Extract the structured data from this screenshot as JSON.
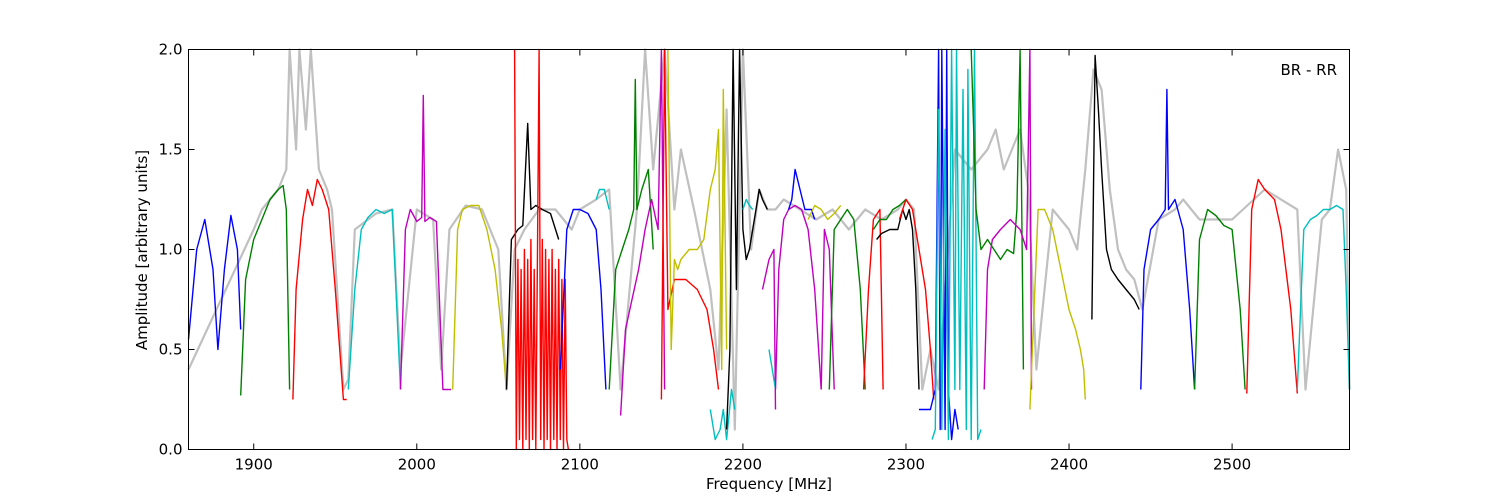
{
  "chart_data": {
    "type": "line",
    "title": "",
    "xlabel": "Frequency [MHz]",
    "ylabel": "Amplitude [arbitrary units]",
    "annotation": "BR - RR",
    "xlim": [
      1860,
      2572
    ],
    "ylim": [
      0.0,
      2.0
    ],
    "xticks": [
      1900,
      2000,
      2100,
      2200,
      2300,
      2400,
      2500
    ],
    "xtick_labels": [
      "1900",
      "2000",
      "2100",
      "2200",
      "2300",
      "2400",
      "2500"
    ],
    "yticks": [
      0.0,
      0.5,
      1.0,
      1.5,
      2.0
    ],
    "ytick_labels": [
      "0.0",
      "0.5",
      "1.0",
      "1.5",
      "2.0"
    ],
    "grid": false,
    "series": [
      {
        "color": "#c0c0c0",
        "kind": "reference",
        "x": [
          1860,
          1900,
          1905,
          1915,
          1920,
          1922,
          1926,
          1928,
          1932,
          1935,
          1940,
          1945,
          1948,
          1955,
          1958,
          1962,
          1975,
          1985,
          1990,
          2000,
          2010,
          2015,
          2020,
          2030,
          2040,
          2050,
          2055,
          2060,
          2066,
          2075,
          2085,
          2095,
          2100,
          2110,
          2118,
          2125,
          2135,
          2140,
          2145,
          2152,
          2158,
          2162,
          2170,
          2175,
          2180,
          2185,
          2190,
          2195,
          2200,
          2205,
          2210,
          2215,
          2220,
          2225,
          2235,
          2245,
          2255,
          2265,
          2275,
          2285,
          2295,
          2300,
          2305,
          2310,
          2315,
          2320,
          2330,
          2340,
          2350,
          2355,
          2360,
          2370,
          2375,
          2380,
          2390,
          2400,
          2405,
          2410,
          2415,
          2420,
          2425,
          2430,
          2435,
          2440,
          2445,
          2455,
          2465,
          2470,
          2480,
          2500,
          2520,
          2540,
          2545,
          2555,
          2560,
          2565,
          2570,
          2572
        ],
        "y": [
          0.4,
          1.1,
          1.2,
          1.3,
          1.4,
          2.0,
          1.5,
          2.0,
          1.6,
          2.0,
          1.4,
          1.3,
          1.2,
          0.3,
          0.35,
          1.1,
          1.18,
          1.2,
          0.4,
          1.2,
          1.15,
          0.4,
          1.1,
          1.22,
          1.2,
          1.0,
          0.3,
          1.0,
          1.1,
          1.2,
          1.2,
          1.1,
          1.2,
          1.25,
          1.3,
          0.3,
          1.2,
          2.0,
          1.4,
          2.0,
          1.2,
          1.5,
          1.2,
          1.0,
          0.8,
          0.4,
          1.7,
          0.1,
          2.0,
          1.0,
          1.3,
          1.2,
          1.2,
          1.25,
          1.2,
          1.15,
          1.2,
          1.1,
          1.2,
          1.15,
          1.2,
          1.25,
          1.2,
          0.3,
          0.5,
          0.3,
          1.5,
          1.4,
          1.5,
          1.6,
          1.4,
          1.6,
          1.3,
          0.4,
          1.2,
          1.1,
          1.0,
          1.4,
          1.9,
          1.8,
          1.3,
          1.0,
          0.9,
          0.85,
          0.7,
          1.15,
          1.2,
          1.25,
          1.15,
          1.15,
          1.3,
          1.2,
          0.3,
          1.15,
          1.2,
          1.5,
          1.3,
          0.3
        ]
      },
      {
        "color": "#0000ff",
        "x": [
          1860,
          1865,
          1870,
          1875,
          1878,
          1882,
          1886,
          1890,
          1892
        ],
        "y": [
          0.55,
          1.0,
          1.15,
          0.9,
          0.5,
          0.9,
          1.17,
          1.0,
          0.6
        ]
      },
      {
        "color": "#008000",
        "x": [
          1892,
          1895,
          1900,
          1905,
          1910,
          1915,
          1918,
          1920,
          1922
        ],
        "y": [
          0.27,
          0.85,
          1.05,
          1.15,
          1.25,
          1.3,
          1.32,
          1.2,
          0.3
        ]
      },
      {
        "color": "#ff0000",
        "x": [
          1924,
          1926,
          1930,
          1933,
          1936,
          1939,
          1942,
          1946,
          1950,
          1955,
          1957
        ],
        "y": [
          0.25,
          0.8,
          1.15,
          1.3,
          1.22,
          1.35,
          1.3,
          1.2,
          0.8,
          0.25,
          0.25
        ]
      },
      {
        "color": "#00bfbf",
        "x": [
          1958,
          1962,
          1966,
          1970,
          1975,
          1980,
          1985,
          1990
        ],
        "y": [
          0.3,
          0.8,
          1.1,
          1.16,
          1.2,
          1.18,
          1.2,
          0.3
        ]
      },
      {
        "color": "#bf00bf",
        "x": [
          1990,
          1993,
          1996,
          2000,
          2003,
          2004,
          2005,
          2008,
          2012,
          2016,
          2021
        ],
        "y": [
          0.3,
          1.1,
          1.2,
          1.14,
          1.16,
          1.77,
          1.14,
          1.16,
          1.14,
          0.3,
          0.3
        ]
      },
      {
        "color": "#bfbf00",
        "x": [
          2022,
          2025,
          2028,
          2033,
          2038,
          2043,
          2048,
          2052,
          2055
        ],
        "y": [
          0.3,
          1.1,
          1.2,
          1.22,
          1.22,
          1.1,
          0.9,
          0.6,
          0.3
        ]
      },
      {
        "color": "#000000",
        "x": [
          2055,
          2058,
          2062,
          2065,
          2068,
          2070,
          2073,
          2077,
          2082,
          2087
        ],
        "y": [
          0.3,
          1.05,
          1.1,
          1.12,
          1.63,
          1.2,
          1.22,
          1.2,
          1.18,
          1.05
        ]
      },
      {
        "color": "#ff0000",
        "x": [
          2060,
          2061,
          2062,
          2063,
          2064,
          2065,
          2066,
          2067,
          2068,
          2069,
          2070,
          2071,
          2072,
          2073,
          2074,
          2075,
          2076,
          2077,
          2078,
          2079,
          2080,
          2081,
          2082,
          2083,
          2084,
          2085,
          2086,
          2087,
          2088,
          2089,
          2090,
          2091,
          2092,
          2093
        ],
        "y": [
          2.0,
          0.0,
          0.95,
          0.05,
          0.9,
          0.0,
          1.0,
          0.05,
          0.95,
          0.0,
          1.05,
          0.05,
          0.9,
          0.0,
          1.0,
          2.0,
          0.05,
          1.05,
          0.0,
          1.0,
          0.05,
          0.95,
          0.0,
          1.0,
          0.05,
          0.9,
          0.0,
          0.95,
          0.05,
          0.85,
          0.0,
          0.85,
          0.05,
          0.0
        ]
      },
      {
        "color": "#0000ff",
        "x": [
          2088,
          2092,
          2096,
          2100,
          2105,
          2110,
          2113,
          2116
        ],
        "y": [
          0.4,
          1.1,
          1.2,
          1.2,
          1.18,
          1.1,
          0.8,
          0.3
        ]
      },
      {
        "color": "#00bfbf",
        "x": [
          2110,
          2112,
          2115,
          2118
        ],
        "y": [
          1.25,
          1.3,
          1.3,
          1.2
        ]
      },
      {
        "color": "#008000",
        "x": [
          2118,
          2122,
          2126,
          2130,
          2133,
          2134,
          2135,
          2138,
          2142,
          2145
        ],
        "y": [
          0.3,
          0.9,
          1.0,
          1.1,
          1.2,
          1.85,
          1.2,
          1.3,
          1.4,
          1.0
        ]
      },
      {
        "color": "#bf00bf",
        "x": [
          2125,
          2128,
          2132,
          2136,
          2140,
          2144,
          2148,
          2150,
          2152
        ],
        "y": [
          0.17,
          0.6,
          0.75,
          0.9,
          1.1,
          1.25,
          1.1,
          2.0,
          0.3
        ]
      },
      {
        "color": "#ff0000",
        "x": [
          2150,
          2152,
          2154,
          2158,
          2165,
          2172,
          2178,
          2182,
          2185
        ],
        "y": [
          0.25,
          2.0,
          0.7,
          0.85,
          0.85,
          0.8,
          0.7,
          0.5,
          0.3
        ]
      },
      {
        "color": "#bfbf00",
        "x": [
          2154,
          2156,
          2158,
          2160,
          2162,
          2167,
          2172,
          2176,
          2180,
          2183,
          2185,
          2187,
          2188,
          2190
        ],
        "y": [
          2.0,
          0.5,
          0.95,
          0.9,
          0.95,
          1.0,
          1.0,
          1.05,
          1.3,
          1.4,
          1.6,
          0.4,
          1.8,
          0.5
        ]
      },
      {
        "color": "#00bfbf",
        "x": [
          2180,
          2183,
          2186,
          2188,
          2190,
          2193,
          2195
        ],
        "y": [
          0.2,
          0.05,
          0.1,
          0.2,
          0.05,
          0.3,
          0.2
        ]
      },
      {
        "color": "#000000",
        "x": [
          2190,
          2192,
          2194,
          2196,
          2198,
          2200,
          2202,
          2204,
          2206,
          2208,
          2210,
          2212,
          2215
        ],
        "y": [
          0.1,
          0.5,
          2.0,
          0.8,
          2.0,
          1.1,
          0.95,
          1.0,
          1.1,
          1.2,
          1.3,
          1.25,
          1.2
        ]
      },
      {
        "color": "#00bfbf",
        "x": [
          2200,
          2202,
          2204,
          2206
        ],
        "y": [
          1.2,
          1.25,
          1.22,
          1.2
        ]
      },
      {
        "color": "#bf00bf",
        "x": [
          2212,
          2216,
          2219,
          2220
        ],
        "y": [
          0.8,
          0.95,
          1.0,
          0.2
        ]
      },
      {
        "color": "#00bfbf",
        "x": [
          2216,
          2218,
          2220
        ],
        "y": [
          0.5,
          0.4,
          0.3
        ]
      },
      {
        "color": "#bf00bf",
        "x": [
          2220,
          2222,
          2225,
          2228,
          2232,
          2236,
          2240,
          2244,
          2248
        ],
        "y": [
          0.3,
          0.9,
          1.15,
          1.2,
          1.22,
          1.2,
          1.1,
          0.8,
          0.3
        ]
      },
      {
        "color": "#0000ff",
        "x": [
          2228,
          2230,
          2232,
          2235,
          2238,
          2242,
          2244
        ],
        "y": [
          1.2,
          1.25,
          1.4,
          1.3,
          1.2,
          1.2,
          1.15
        ]
      },
      {
        "color": "#bfbf00",
        "x": [
          2240,
          2244,
          2248,
          2252,
          2256,
          2260
        ],
        "y": [
          1.15,
          1.22,
          1.2,
          1.15,
          1.18,
          1.22
        ]
      },
      {
        "color": "#bf00bf",
        "x": [
          2248,
          2250,
          2253,
          2256
        ],
        "y": [
          0.3,
          1.1,
          1.0,
          0.3
        ]
      },
      {
        "color": "#008000",
        "x": [
          2253,
          2256,
          2260,
          2264,
          2268,
          2272,
          2275
        ],
        "y": [
          0.3,
          1.1,
          1.15,
          1.2,
          1.15,
          0.8,
          0.3
        ]
      },
      {
        "color": "#ff0000",
        "x": [
          2274,
          2277,
          2280,
          2284,
          2286
        ],
        "y": [
          0.3,
          0.8,
          1.15,
          1.2,
          0.3
        ]
      },
      {
        "color": "#008000",
        "x": [
          2280,
          2284,
          2288,
          2292,
          2296,
          2300
        ],
        "y": [
          1.1,
          1.15,
          1.15,
          1.2,
          1.22,
          1.25
        ]
      },
      {
        "color": "#000000",
        "x": [
          2282,
          2285,
          2290,
          2295,
          2298,
          2300,
          2302,
          2304,
          2306,
          2308
        ],
        "y": [
          1.05,
          1.08,
          1.1,
          1.1,
          1.2,
          1.15,
          1.2,
          1.1,
          0.8,
          0.3
        ]
      },
      {
        "color": "#ff0000",
        "x": [
          2296,
          2300,
          2304,
          2308,
          2312,
          2315,
          2317
        ],
        "y": [
          1.15,
          1.25,
          1.2,
          1.0,
          0.8,
          0.5,
          0.25
        ]
      },
      {
        "color": "#0000ff",
        "x": [
          2308,
          2311,
          2315,
          2318,
          2320,
          2321,
          2322,
          2324,
          2325,
          2326,
          2328,
          2330,
          2332
        ],
        "y": [
          0.2,
          0.2,
          0.2,
          0.3,
          2.0,
          0.1,
          2.0,
          0.1,
          2.0,
          0.3,
          0.05,
          0.2,
          0.1
        ]
      },
      {
        "color": "#00bfbf",
        "x": [
          2316,
          2318,
          2320,
          2322,
          2324,
          2326,
          2328,
          2330,
          2331,
          2333,
          2335,
          2337,
          2338,
          2340,
          2342,
          2344,
          2346
        ],
        "y": [
          0.05,
          0.1,
          1.7,
          0.1,
          1.6,
          0.05,
          2.0,
          0.3,
          2.0,
          0.3,
          1.8,
          0.1,
          1.9,
          0.05,
          2.0,
          0.05,
          0.1
        ]
      },
      {
        "color": "#008000",
        "x": [
          2340,
          2343,
          2346,
          2350,
          2354,
          2358,
          2362,
          2366,
          2368,
          2370,
          2372
        ],
        "y": [
          2.0,
          1.2,
          1.0,
          1.05,
          1.0,
          0.95,
          1.0,
          0.98,
          1.2,
          2.0,
          0.4
        ]
      },
      {
        "color": "#bf00bf",
        "x": [
          2348,
          2350,
          2353,
          2358,
          2364,
          2370,
          2374,
          2376,
          2377
        ],
        "y": [
          0.3,
          0.9,
          1.05,
          1.1,
          1.15,
          1.1,
          1.0,
          2.0,
          0.3
        ]
      },
      {
        "color": "#bfbf00",
        "x": [
          2376,
          2378,
          2381,
          2385,
          2390,
          2395,
          2400,
          2404,
          2407,
          2409,
          2410
        ],
        "y": [
          0.2,
          0.6,
          1.2,
          1.2,
          1.1,
          0.9,
          0.7,
          0.6,
          0.5,
          0.4,
          0.25
        ]
      },
      {
        "color": "#000000",
        "x": [
          2414,
          2416,
          2418,
          2420,
          2423,
          2426,
          2430,
          2435,
          2440,
          2443
        ],
        "y": [
          0.65,
          1.97,
          1.7,
          1.4,
          1.0,
          0.9,
          0.85,
          0.8,
          0.75,
          0.7
        ]
      },
      {
        "color": "#0000ff",
        "x": [
          2444,
          2446,
          2450,
          2455,
          2459,
          2460,
          2461,
          2465,
          2470,
          2474,
          2477
        ],
        "y": [
          0.3,
          0.9,
          1.1,
          1.15,
          1.2,
          1.8,
          1.2,
          1.25,
          1.1,
          0.7,
          0.3
        ]
      },
      {
        "color": "#008000",
        "x": [
          2477,
          2480,
          2485,
          2490,
          2495,
          2500,
          2505,
          2508
        ],
        "y": [
          0.3,
          1.05,
          1.2,
          1.17,
          1.12,
          1.1,
          0.7,
          0.3
        ]
      },
      {
        "color": "#ff0000",
        "x": [
          2509,
          2512,
          2516,
          2520,
          2526,
          2530,
          2536,
          2540
        ],
        "y": [
          0.28,
          1.2,
          1.35,
          1.3,
          1.25,
          1.1,
          0.7,
          0.28
        ]
      },
      {
        "color": "#00bfbf",
        "x": [
          2540,
          2544,
          2548,
          2552,
          2556,
          2560,
          2564,
          2568,
          2570,
          2572
        ],
        "y": [
          0.3,
          1.1,
          1.15,
          1.17,
          1.2,
          1.2,
          1.22,
          1.2,
          0.8,
          0.3
        ]
      }
    ]
  }
}
